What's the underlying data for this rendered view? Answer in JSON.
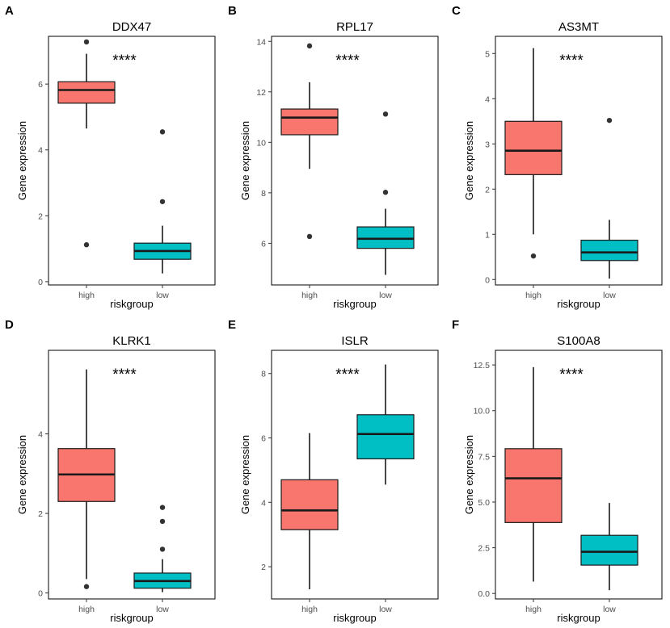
{
  "figure": {
    "colors": {
      "high": "#F8766D",
      "low": "#00BFC4",
      "outlier": "#333333",
      "line": "#1a1a1a"
    },
    "x_axis_label": "riskgroup",
    "y_axis_label": "Gene expression",
    "categories": [
      "high",
      "low"
    ]
  },
  "chart_data": [
    {
      "type": "box",
      "panel": "A",
      "title": "DDX47",
      "significance": "****",
      "xlabel": "riskgroup",
      "ylabel": "Gene expression",
      "categories": [
        "high",
        "low"
      ],
      "ylim": [
        -0.1,
        7.45
      ],
      "yticks": [
        0,
        2,
        4,
        6
      ],
      "tick_labels": [
        "0",
        "2",
        "4",
        "6"
      ],
      "boxes": [
        {
          "group": "high",
          "min": 4.65,
          "q1": 5.42,
          "median": 5.82,
          "q3": 6.07,
          "max": 6.92,
          "outliers": [
            7.28,
            1.12
          ]
        },
        {
          "group": "low",
          "min": 0.25,
          "q1": 0.68,
          "median": 0.93,
          "q3": 1.17,
          "max": 1.7,
          "outliers": [
            2.43,
            4.55
          ]
        }
      ]
    },
    {
      "type": "box",
      "panel": "B",
      "title": "RPL17",
      "significance": "****",
      "xlabel": "riskgroup",
      "ylabel": "Gene expression",
      "categories": [
        "high",
        "low"
      ],
      "ylim": [
        4.35,
        14.2
      ],
      "yticks": [
        6,
        8,
        10,
        12,
        14
      ],
      "tick_labels": [
        "6",
        "8",
        "10",
        "12",
        "14"
      ],
      "boxes": [
        {
          "group": "high",
          "min": 8.95,
          "q1": 10.3,
          "median": 10.98,
          "q3": 11.32,
          "max": 12.38,
          "outliers": [
            13.82,
            6.27
          ]
        },
        {
          "group": "low",
          "min": 4.75,
          "q1": 5.8,
          "median": 6.18,
          "q3": 6.65,
          "max": 7.37,
          "outliers": [
            8.02,
            11.12
          ]
        }
      ]
    },
    {
      "type": "box",
      "panel": "C",
      "title": "AS3MT",
      "significance": "****",
      "xlabel": "riskgroup",
      "ylabel": "Gene expression",
      "categories": [
        "high",
        "low"
      ],
      "ylim": [
        -0.12,
        5.38
      ],
      "yticks": [
        0,
        1,
        2,
        3,
        4,
        5
      ],
      "tick_labels": [
        "0",
        "1",
        "2",
        "3",
        "4",
        "5"
      ],
      "boxes": [
        {
          "group": "high",
          "min": 1.0,
          "q1": 2.32,
          "median": 2.85,
          "q3": 3.5,
          "max": 5.12,
          "outliers": [
            0.52
          ]
        },
        {
          "group": "low",
          "min": 0.02,
          "q1": 0.42,
          "median": 0.6,
          "q3": 0.87,
          "max": 1.32,
          "outliers": [
            3.52
          ]
        }
      ]
    },
    {
      "type": "box",
      "panel": "D",
      "title": "KLRK1",
      "significance": "****",
      "xlabel": "riskgroup",
      "ylabel": "Gene expression",
      "categories": [
        "high",
        "low"
      ],
      "ylim": [
        -0.15,
        6.1
      ],
      "yticks": [
        0,
        2,
        4
      ],
      "tick_labels": [
        "0",
        "2",
        "4"
      ],
      "boxes": [
        {
          "group": "high",
          "min": 0.35,
          "q1": 2.3,
          "median": 2.98,
          "q3": 3.63,
          "max": 5.62,
          "outliers": [
            0.16
          ]
        },
        {
          "group": "low",
          "min": 0.02,
          "q1": 0.12,
          "median": 0.3,
          "q3": 0.5,
          "max": 0.85,
          "outliers": [
            1.1,
            1.8,
            2.15
          ]
        }
      ]
    },
    {
      "type": "box",
      "panel": "E",
      "title": "ISLR",
      "significance": "****",
      "xlabel": "riskgroup",
      "ylabel": "Gene expression",
      "categories": [
        "high",
        "low"
      ],
      "ylim": [
        1.0,
        8.72
      ],
      "yticks": [
        2,
        4,
        6,
        8
      ],
      "tick_labels": [
        "2",
        "4",
        "6",
        "8"
      ],
      "boxes": [
        {
          "group": "high",
          "min": 1.3,
          "q1": 3.15,
          "median": 3.75,
          "q3": 4.7,
          "max": 6.15,
          "outliers": []
        },
        {
          "group": "low",
          "min": 4.55,
          "q1": 5.35,
          "median": 6.12,
          "q3": 6.72,
          "max": 8.28,
          "outliers": []
        }
      ]
    },
    {
      "type": "box",
      "panel": "F",
      "title": "S100A8",
      "significance": "****",
      "xlabel": "riskgroup",
      "ylabel": "Gene expression",
      "categories": [
        "high",
        "low"
      ],
      "ylim": [
        -0.3,
        13.3
      ],
      "yticks": [
        0,
        2.5,
        5,
        7.5,
        10,
        12.5
      ],
      "tick_labels": [
        "0.0",
        "2.5",
        "5.0",
        "7.5",
        "10.0",
        "12.5"
      ],
      "boxes": [
        {
          "group": "high",
          "min": 0.65,
          "q1": 3.88,
          "median": 6.3,
          "q3": 7.92,
          "max": 12.38,
          "outliers": []
        },
        {
          "group": "low",
          "min": 0.18,
          "q1": 1.55,
          "median": 2.28,
          "q3": 3.18,
          "max": 4.95,
          "outliers": []
        }
      ]
    }
  ]
}
